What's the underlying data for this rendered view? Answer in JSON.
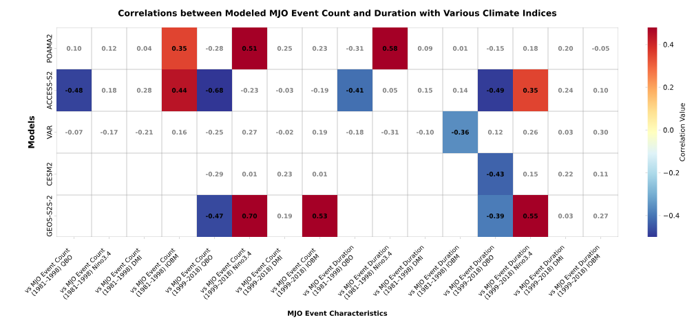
{
  "chart_data": {
    "type": "heatmap",
    "title": "Correlations between Modeled MJO Event Count and Duration with Various Climate Indices",
    "xlabel": "MJO Event Characteristics",
    "ylabel": "Models",
    "clabel": "Correlation Value",
    "categories": [
      "vs MJO Event Count (1981–1998) QBO",
      "vs MJO Event Count (1981–1998) Nino3.4",
      "vs MJO Event Count (1981–1998) DMI",
      "vs MJO Event Count (1981–1998) IOBM",
      "vs MJO Event Count (1999–2018) QBO",
      "vs MJO Event Count (1999–2018) Nino3.4",
      "vs MJO Event Count (1999–2018) DMI",
      "vs MJO Event Count (1999–2018) IOBM",
      "vs MJO Event Duration (1981–1998) QBO",
      "vs MJO Event Duration (1981–1998) Nino3.4",
      "vs MJO Event Duration (1981–1998) DMI",
      "vs MJO Event Duration (1981–1998) IOBM",
      "vs MJO Event Duration (1999–2018) QBO",
      "vs MJO Event Duration (1999–2018) Nino3.4",
      "vs MJO Event Duration (1999–2018) DMI",
      "vs MJO Event Duration (1999–2018) IOBM"
    ],
    "y_categories": [
      "POAMA2",
      "ACCESS-S2",
      "VAR",
      "CESM2",
      "GEOS-S2S-2"
    ],
    "cells": [
      [
        null,
        null,
        null,
        0.35,
        null,
        0.51,
        null,
        null,
        null,
        0.58,
        null,
        null,
        null,
        null,
        null,
        null
      ],
      [
        -0.48,
        null,
        null,
        0.44,
        -0.68,
        null,
        null,
        null,
        -0.41,
        null,
        null,
        null,
        -0.49,
        0.35,
        null,
        null
      ],
      [
        null,
        null,
        null,
        null,
        null,
        null,
        null,
        null,
        null,
        null,
        null,
        -0.36,
        null,
        null,
        null,
        null
      ],
      [
        null,
        null,
        null,
        null,
        null,
        null,
        null,
        null,
        null,
        null,
        null,
        null,
        -0.43,
        null,
        null,
        null
      ],
      [
        null,
        null,
        null,
        null,
        -0.47,
        0.7,
        null,
        0.53,
        null,
        null,
        null,
        null,
        -0.39,
        0.55,
        null,
        null
      ]
    ],
    "cell_labels": [
      [
        "0.10",
        "0.12",
        "0.04",
        "0.35",
        "-0.28",
        "0.51",
        "0.25",
        "0.23",
        "-0.31",
        "0.58",
        "0.09",
        "0.01",
        "-0.15",
        "0.18",
        "0.20",
        "-0.05"
      ],
      [
        "-0.48",
        "0.18",
        "0.28",
        "0.44",
        "-0.68",
        "-0.23",
        "-0.03",
        "-0.19",
        "-0.41",
        "0.05",
        "0.15",
        "0.14",
        "-0.49",
        "0.35",
        "0.24",
        "0.10"
      ],
      [
        "-0.07",
        "-0.17",
        "-0.21",
        "0.16",
        "-0.25",
        "0.27",
        "-0.02",
        "0.19",
        "-0.18",
        "-0.31",
        "-0.10",
        "-0.36",
        "0.12",
        "0.26",
        "0.03",
        "0.30"
      ],
      [
        null,
        null,
        null,
        null,
        "-0.29",
        "0.01",
        "0.23",
        "0.01",
        null,
        null,
        null,
        null,
        "-0.43",
        "0.15",
        "0.22",
        "0.11"
      ],
      [
        null,
        null,
        null,
        null,
        "-0.47",
        "0.70",
        "0.19",
        "0.53",
        null,
        null,
        null,
        null,
        "-0.39",
        "0.55",
        "0.03",
        "0.27"
      ]
    ],
    "clim": [
      -0.5,
      0.48
    ],
    "cticks": [
      {
        "value": -0.4,
        "label": "−0.4"
      },
      {
        "value": -0.2,
        "label": "−0.2"
      },
      {
        "value": 0,
        "label": "0.0"
      },
      0.2,
      0.4
    ]
  }
}
